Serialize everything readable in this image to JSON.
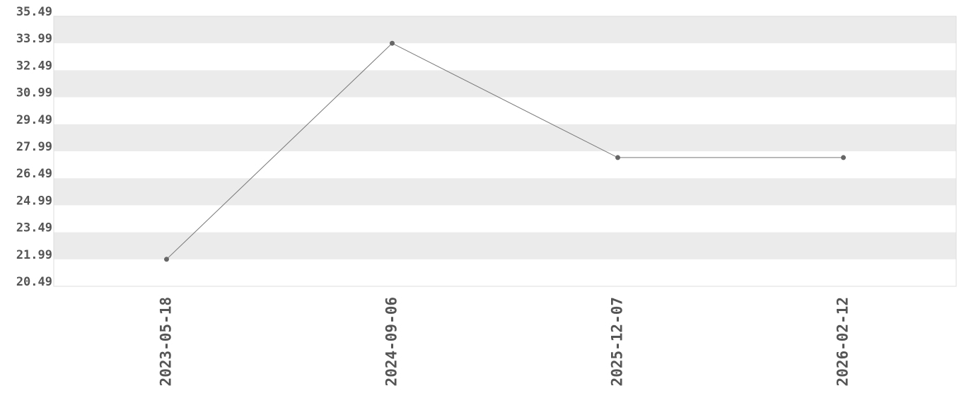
{
  "chart_data": {
    "type": "line",
    "categories": [
      "2023-05-18",
      "2024-09-06",
      "2025-12-07",
      "2026-02-12"
    ],
    "values": [
      21.99,
      33.99,
      27.64,
      27.64
    ],
    "color": "#777777",
    "ylim": [
      20.49,
      35.49
    ],
    "yticks": [
      20.49,
      21.99,
      23.49,
      24.99,
      26.49,
      27.99,
      29.49,
      30.99,
      32.49,
      33.99,
      35.49
    ],
    "grid": true
  }
}
